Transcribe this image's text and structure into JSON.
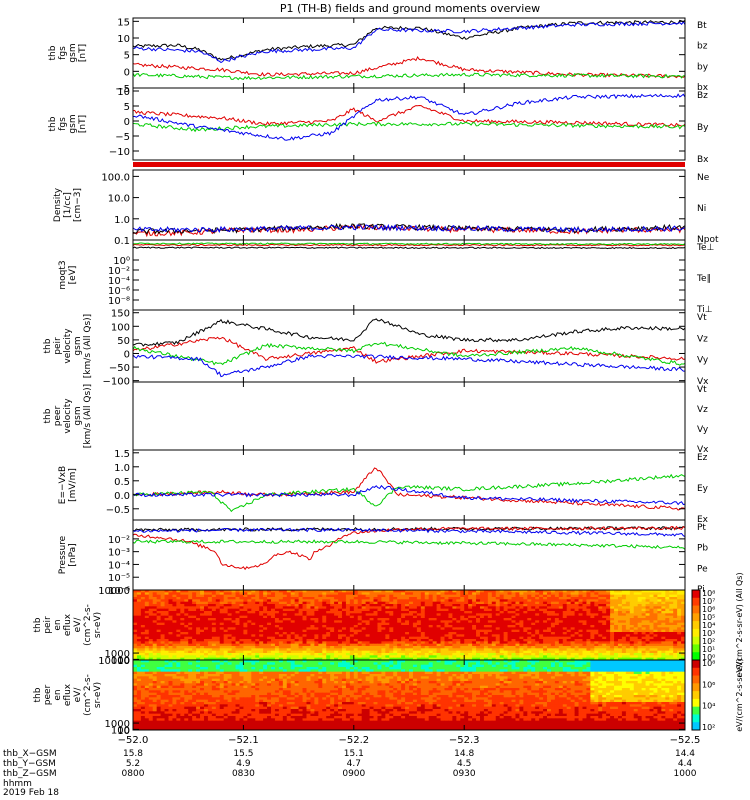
{
  "title": "P1 (TH-B) fields and ground moments overview",
  "date_label": "2019 Feb 18",
  "colors": {
    "black": "#000000",
    "red": "#e00000",
    "green": "#00cc00",
    "blue": "#0000ee"
  },
  "chart_data": [
    {
      "type": "line",
      "panel": "fgs",
      "ylabel_lines": [
        "thb",
        "fgs",
        "gsm",
        "[nT]"
      ],
      "ylim": [
        -5,
        16
      ],
      "yticks": [
        15,
        10,
        5,
        0,
        -5
      ],
      "ytick_labels": [
        "15",
        "10",
        "5",
        "0",
        "−5"
      ],
      "series": [
        {
          "name": "Bt",
          "color": "black",
          "x": [
            -52.0,
            -52.04,
            -52.06,
            -52.08,
            -52.12,
            -52.16,
            -52.2,
            -52.22,
            -52.26,
            -52.3,
            -52.35,
            -52.4,
            -52.5
          ],
          "y": [
            7.5,
            7.8,
            6.5,
            3.5,
            6.5,
            7.5,
            8,
            13,
            13,
            10,
            13,
            14.5,
            14.8
          ]
        },
        {
          "name": "bz",
          "color": "red",
          "x": [
            -52.0,
            -52.08,
            -52.12,
            -52.2,
            -52.22,
            -52.26,
            -52.3,
            -52.4,
            -52.5
          ],
          "y": [
            2,
            0.5,
            -1,
            -0.5,
            1,
            4,
            0.5,
            -1,
            -1.5
          ]
        },
        {
          "name": "by",
          "color": "green",
          "x": [
            -52.0,
            -52.1,
            -52.2,
            -52.3,
            -52.5
          ],
          "y": [
            -1,
            -2,
            -1.5,
            -1,
            -1.5
          ]
        },
        {
          "name": "bx",
          "color": "blue",
          "x": [
            -52.0,
            -52.06,
            -52.08,
            -52.12,
            -52.2,
            -52.22,
            -52.3,
            -52.4,
            -52.5
          ],
          "y": [
            7,
            6,
            3,
            6,
            7,
            12.5,
            12,
            14,
            14.5
          ]
        }
      ]
    },
    {
      "type": "line",
      "panel": "fgs-B",
      "ylabel_lines": [
        "thb",
        "fgs",
        "gsm",
        "[nT]"
      ],
      "ylim": [
        -13,
        11
      ],
      "yticks": [
        10,
        5,
        0,
        -5,
        -10
      ],
      "ytick_labels": [
        "10",
        "5",
        "0",
        "−5",
        "−10"
      ],
      "series": [
        {
          "name": "Bz",
          "color": "red",
          "x": [
            -52.0,
            -52.08,
            -52.12,
            -52.18,
            -52.2,
            -52.22,
            -52.26,
            -52.3,
            -52.4,
            -52.5
          ],
          "y": [
            3,
            1,
            -1,
            0,
            4,
            0,
            5,
            0,
            -0.5,
            -1.5
          ]
        },
        {
          "name": "By",
          "color": "green",
          "x": [
            -52.0,
            -52.06,
            -52.1,
            -52.2,
            -52.3,
            -52.5
          ],
          "y": [
            -1,
            -3,
            -2,
            -1,
            -1,
            -2
          ]
        },
        {
          "name": "Bx",
          "color": "blue",
          "x": [
            -52.0,
            -52.06,
            -52.1,
            -52.14,
            -52.18,
            -52.22,
            -52.26,
            -52.3,
            -52.35,
            -52.4,
            -52.5
          ],
          "y": [
            2,
            -2,
            -4,
            -6,
            -4,
            7,
            8,
            2,
            6,
            8,
            8.5
          ]
        }
      ]
    },
    {
      "type": "line",
      "panel": "density",
      "log": true,
      "ylabel_lines": [
        "Density",
        "[1/cc]",
        "[cm−3]"
      ],
      "ylim": [
        0.1,
        200
      ],
      "yticks": [
        100,
        10,
        1,
        0.1
      ],
      "ytick_labels": [
        "100.0",
        "10.0",
        "1.0",
        "0.1"
      ],
      "series": [
        {
          "name": "Ne",
          "color": "red",
          "x": [
            -52.0,
            -52.05,
            -52.1,
            -52.15,
            -52.2,
            -52.25,
            -52.3,
            -52.35,
            -52.4,
            -52.45,
            -52.5
          ],
          "y": [
            0.2,
            0.22,
            0.3,
            0.3,
            0.4,
            0.35,
            0.3,
            0.3,
            0.25,
            0.3,
            0.3
          ]
        },
        {
          "name": "Ni",
          "color": "black",
          "x": [
            -52.0,
            -52.1,
            -52.2,
            -52.3,
            -52.4,
            -52.5
          ],
          "y": [
            0.25,
            0.3,
            0.45,
            0.35,
            0.3,
            0.4
          ]
        },
        {
          "name": "Npot",
          "color": "blue",
          "x": [
            -52.0,
            -52.1,
            -52.2,
            -52.3,
            -52.4,
            -52.5
          ],
          "y": [
            0.3,
            0.32,
            0.4,
            0.35,
            0.3,
            0.35
          ]
        }
      ]
    },
    {
      "type": "line",
      "panel": "moqt3",
      "log": true,
      "ylabel_lines": [
        "moqt3",
        "[eV]"
      ],
      "ylim": [
        1e-10,
        10000.0
      ],
      "yticks": [
        1,
        0.01,
        0.0001,
        1e-06,
        1e-08
      ],
      "ytick_labels": [
        "10⁰",
        "10⁻²",
        "10⁻⁴",
        "10⁻⁶",
        "10⁻⁸"
      ],
      "series": [
        {
          "name": "Te⊥",
          "color": "red",
          "x": [
            -52.0,
            -52.5
          ],
          "y": [
            1000,
            900
          ]
        },
        {
          "name": "Te∥",
          "color": "black",
          "x": [
            -52.0,
            -52.5
          ],
          "y": [
            300,
            250
          ]
        },
        {
          "name": "Ti⊥",
          "color": "green",
          "x": [
            -52.0,
            -52.5
          ],
          "y": [
            2000,
            1500
          ]
        }
      ]
    },
    {
      "type": "line",
      "panel": "peir-velocity",
      "ylabel_lines": [
        "thb",
        "peir",
        "velocity",
        "gsm",
        "[km/s (All Qs)]"
      ],
      "ylim": [
        -105,
        160
      ],
      "yticks": [
        150,
        100,
        50,
        0,
        -50,
        -100
      ],
      "ytick_labels": [
        "150",
        "100",
        "50",
        "0",
        "−50",
        "−100"
      ],
      "series": [
        {
          "name": "Vt",
          "color": "black",
          "x": [
            -52.0,
            -52.04,
            -52.08,
            -52.12,
            -52.16,
            -52.2,
            -52.22,
            -52.26,
            -52.3,
            -52.35,
            -52.4,
            -52.45,
            -52.5
          ],
          "y": [
            30,
            40,
            120,
            90,
            60,
            50,
            130,
            70,
            50,
            50,
            80,
            95,
            90
          ]
        },
        {
          "name": "Vz",
          "color": "red",
          "x": [
            -52.0,
            -52.08,
            -52.12,
            -52.2,
            -52.22,
            -52.3,
            -52.4,
            -52.5
          ],
          "y": [
            10,
            60,
            -20,
            20,
            -30,
            10,
            0,
            -20
          ]
        },
        {
          "name": "Vy",
          "color": "green",
          "x": [
            -52.0,
            -52.08,
            -52.12,
            -52.2,
            -52.22,
            -52.3,
            -52.4,
            -52.5
          ],
          "y": [
            20,
            -40,
            30,
            10,
            40,
            -10,
            20,
            -40
          ]
        },
        {
          "name": "Vx",
          "color": "blue",
          "x": [
            -52.0,
            -52.06,
            -52.08,
            -52.12,
            -52.16,
            -52.2,
            -52.3,
            -52.4,
            -52.5
          ],
          "y": [
            -10,
            -20,
            -80,
            -50,
            -10,
            -10,
            -20,
            -40,
            -60
          ]
        }
      ]
    },
    {
      "type": "line",
      "panel": "peer-velocity",
      "ylabel_lines": [
        "thb",
        "peer",
        "velocity",
        "gsm",
        "[km/s (All Qs)]"
      ],
      "series": [
        {
          "name": "Vt",
          "color": "black",
          "x": [],
          "y": []
        },
        {
          "name": "Vz",
          "color": "red",
          "x": [],
          "y": []
        },
        {
          "name": "Vy",
          "color": "green",
          "x": [],
          "y": []
        },
        {
          "name": "Vx",
          "color": "blue",
          "x": [],
          "y": []
        }
      ]
    },
    {
      "type": "line",
      "panel": "efield",
      "ylabel_lines": [
        "E=−VxB",
        "[mV/m]"
      ],
      "ylim": [
        -0.9,
        1.6
      ],
      "yticks": [
        1.5,
        1.0,
        0.5,
        0.0,
        -0.5
      ],
      "ytick_labels": [
        "1.5",
        "1.0",
        "0.5",
        "0.0",
        "−0.5"
      ],
      "series": [
        {
          "name": "Ez",
          "color": "red",
          "x": [
            -52.0,
            -52.08,
            -52.12,
            -52.2,
            -52.22,
            -52.24,
            -52.3,
            -52.4,
            -52.5
          ],
          "y": [
            0,
            0.1,
            0,
            0.1,
            1,
            0,
            -0.1,
            -0.3,
            -0.5
          ]
        },
        {
          "name": "Ey",
          "color": "green",
          "x": [
            -52.0,
            -52.07,
            -52.09,
            -52.12,
            -52.2,
            -52.22,
            -52.24,
            -52.3,
            -52.4,
            -52.5
          ],
          "y": [
            0,
            0.1,
            -0.6,
            0,
            0.2,
            -0.4,
            0.3,
            0.2,
            0.4,
            0.7
          ]
        },
        {
          "name": "Ex",
          "color": "blue",
          "x": [
            -52.0,
            -52.08,
            -52.12,
            -52.2,
            -52.22,
            -52.3,
            -52.4,
            -52.5
          ],
          "y": [
            0,
            0,
            0,
            0,
            0.3,
            -0.1,
            -0.2,
            -0.3
          ]
        }
      ]
    },
    {
      "type": "line",
      "panel": "pressure",
      "log": true,
      "ylabel_lines": [
        "Pressure",
        "[nPa]"
      ],
      "ylim": [
        1e-06,
        0.3
      ],
      "yticks": [
        0.01,
        0.001,
        0.0001,
        1e-05,
        1e-06
      ],
      "ytick_labels": [
        "10⁻²",
        "10⁻³",
        "10⁻⁴",
        "10⁻⁵",
        "10⁻⁶"
      ],
      "series": [
        {
          "name": "Pt",
          "color": "black",
          "x": [
            -52.0,
            -52.25,
            -52.5
          ],
          "y": [
            0.05,
            0.06,
            0.07
          ]
        },
        {
          "name": "Pb",
          "color": "red",
          "x": [
            -52.0,
            -52.06,
            -52.08,
            -52.1,
            -52.12,
            -52.14,
            -52.16,
            -52.18,
            -52.2,
            -52.25,
            -52.5
          ],
          "y": [
            0.02,
            0.003,
            0.0001,
            5e-05,
            0.0001,
            0.001,
            0.0002,
            0.003,
            0.03,
            0.06,
            0.07
          ]
        },
        {
          "name": "Pe",
          "color": "green",
          "x": [
            -52.0,
            -52.2,
            -52.35,
            -52.5
          ],
          "y": [
            0.006,
            0.006,
            0.004,
            0.002
          ]
        },
        {
          "name": "Pi",
          "color": "blue",
          "x": [
            -52.0,
            -52.1,
            -52.2,
            -52.3,
            -52.4,
            -52.5
          ],
          "y": [
            0.04,
            0.05,
            0.05,
            0.04,
            0.03,
            0.02
          ]
        }
      ]
    },
    {
      "type": "heatmap",
      "panel": "peir-eflux",
      "ylabel_lines": [
        "thb",
        "peir",
        "en",
        "eflux",
        "eV/",
        "(cm^2-s-",
        "sr-eV)"
      ],
      "ylim": [
        10,
        10000
      ],
      "yticks": [
        10000,
        1000,
        100,
        10
      ],
      "ytick_labels": [
        "10000",
        "1000",
        "100",
        "10"
      ],
      "colorbar": {
        "label": "eV/(cm^2-s-sr-eV) (All Qs)",
        "tick_labels": [
          "10⁸",
          "10⁷",
          "10⁶",
          "10⁵",
          "10⁴",
          "10³",
          "10²",
          "10¹",
          "10⁰"
        ]
      }
    },
    {
      "type": "heatmap",
      "panel": "peer-eflux",
      "ylabel_lines": [
        "thb",
        "peer",
        "en",
        "eflux",
        "eV/",
        "(cm^2-s-",
        "sr-eV)"
      ],
      "ylim": [
        10,
        10000
      ],
      "yticks": [
        10000,
        1000,
        100,
        10
      ],
      "ytick_labels": [
        "10000",
        "1000",
        "100",
        "10"
      ],
      "colorbar": {
        "label": "eV/(cm^2-s-sr-eV)",
        "tick_labels": [
          "10⁸",
          "10⁶",
          "10⁴",
          "10²"
        ]
      }
    }
  ],
  "xaxis": {
    "ticks": [
      -52.0,
      -52.1,
      -52.2,
      -52.3,
      -52.5
    ],
    "labels": [
      "−52.0",
      "−52.1",
      "−52.2",
      "−52.3",
      "−52.5"
    ],
    "rows": [
      {
        "name": "thb_X−GSM",
        "values": [
          "15.8",
          "15.5",
          "15.1",
          "14.8",
          "14.4"
        ]
      },
      {
        "name": "thb_Y−GSM",
        "values": [
          "5.2",
          "4.9",
          "4.7",
          "4.5",
          "4.4"
        ]
      },
      {
        "name": "thb_Z−GSM",
        "values": [
          "0800",
          "0830",
          "0900",
          "0930",
          "1000"
        ]
      },
      {
        "name": "hhmm",
        "values": [
          "",
          "",
          "",
          "",
          ""
        ]
      }
    ]
  }
}
